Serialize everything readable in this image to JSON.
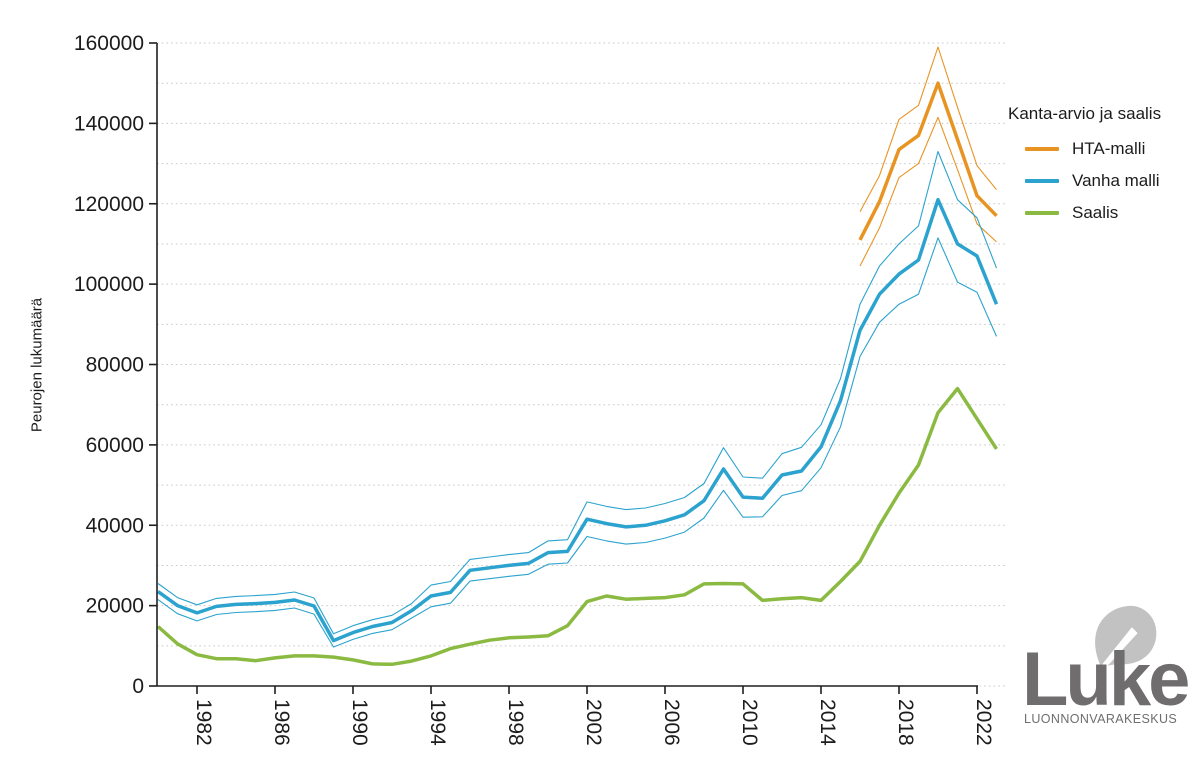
{
  "chart_data": {
    "type": "line",
    "title": "",
    "ylabel": "Peurojen lukumäärä",
    "xlabel": "",
    "ylim": [
      0,
      160000
    ],
    "ytick_step": 20000,
    "grid_step": 10000,
    "grid_on": true,
    "xticks": [
      1982,
      1986,
      1990,
      1994,
      1998,
      2002,
      2006,
      2010,
      2014,
      2018,
      2022
    ],
    "x_range": [
      1980,
      2023
    ],
    "legend_title": "Kanta-arvio ja saalis",
    "legend_position": "right",
    "series": [
      {
        "name": "HTA-malli",
        "color": "#E89423",
        "start_year": 2016,
        "values": [
          111000,
          120500,
          133500,
          137000,
          150000,
          136000,
          122000,
          117000
        ],
        "upper": [
          118000,
          127000,
          141000,
          144500,
          159000,
          144000,
          129500,
          123500
        ],
        "lower": [
          104500,
          114000,
          126500,
          130000,
          141500,
          128500,
          115000,
          110500
        ]
      },
      {
        "name": "Vanha malli",
        "color": "#2BA3CE",
        "start_year": 1980,
        "values": [
          23500,
          20000,
          18200,
          19800,
          20300,
          20500,
          20800,
          21400,
          19900,
          11300,
          13300,
          14800,
          15800,
          18700,
          22400,
          23300,
          28800,
          29400,
          30000,
          30500,
          33200,
          33500,
          41500,
          40400,
          39600,
          40000,
          41100,
          42600,
          46100,
          54000,
          47000,
          46700,
          52500,
          53500,
          59500,
          71000,
          88500,
          97500,
          102500,
          106000,
          121000,
          110000,
          107000,
          95000
        ],
        "upper": [
          25500,
          22000,
          20200,
          21800,
          22300,
          22500,
          22800,
          23400,
          21900,
          13000,
          15000,
          16500,
          17600,
          20500,
          25100,
          26000,
          31500,
          32100,
          32700,
          33200,
          36100,
          36400,
          45800,
          44700,
          43900,
          44300,
          45400,
          46900,
          50400,
          59300,
          52000,
          51700,
          57800,
          59400,
          65000,
          76500,
          95000,
          104500,
          110000,
          114500,
          133000,
          121000,
          116500,
          104000
        ],
        "lower": [
          21500,
          18000,
          16200,
          17800,
          18300,
          18500,
          18800,
          19400,
          17900,
          9700,
          11600,
          13100,
          14000,
          16900,
          19700,
          20600,
          26100,
          26700,
          27300,
          27800,
          30300,
          30600,
          37200,
          36100,
          35300,
          35700,
          36800,
          38300,
          41800,
          48700,
          42000,
          42100,
          47400,
          48600,
          54300,
          64500,
          82000,
          90500,
          95000,
          97500,
          111500,
          100500,
          98000,
          87000
        ]
      },
      {
        "name": "Saalis",
        "color": "#8BBA42",
        "start_year": 1980,
        "values": [
          14800,
          10500,
          7800,
          6800,
          6800,
          6300,
          7000,
          7500,
          7500,
          7200,
          6500,
          5500,
          5400,
          6200,
          7500,
          9300,
          10400,
          11400,
          12000,
          12200,
          12500,
          15000,
          21000,
          22400,
          21600,
          21800,
          22000,
          22700,
          25400,
          25500,
          25400,
          21300,
          21700,
          22000,
          21300,
          26000,
          31000,
          40000,
          48000,
          55000,
          68000,
          74000,
          66500,
          59000
        ]
      }
    ],
    "colors": {
      "axis": "#1f1f1f",
      "grid": "#c9c9c9",
      "text": "#1c1c1c"
    }
  },
  "logo": {
    "wordmark": "Luke",
    "subtitle": "LUONNONVARAKESKUS",
    "text_color": "#6f6d6d",
    "leaf_color": "#c3c2c2"
  }
}
